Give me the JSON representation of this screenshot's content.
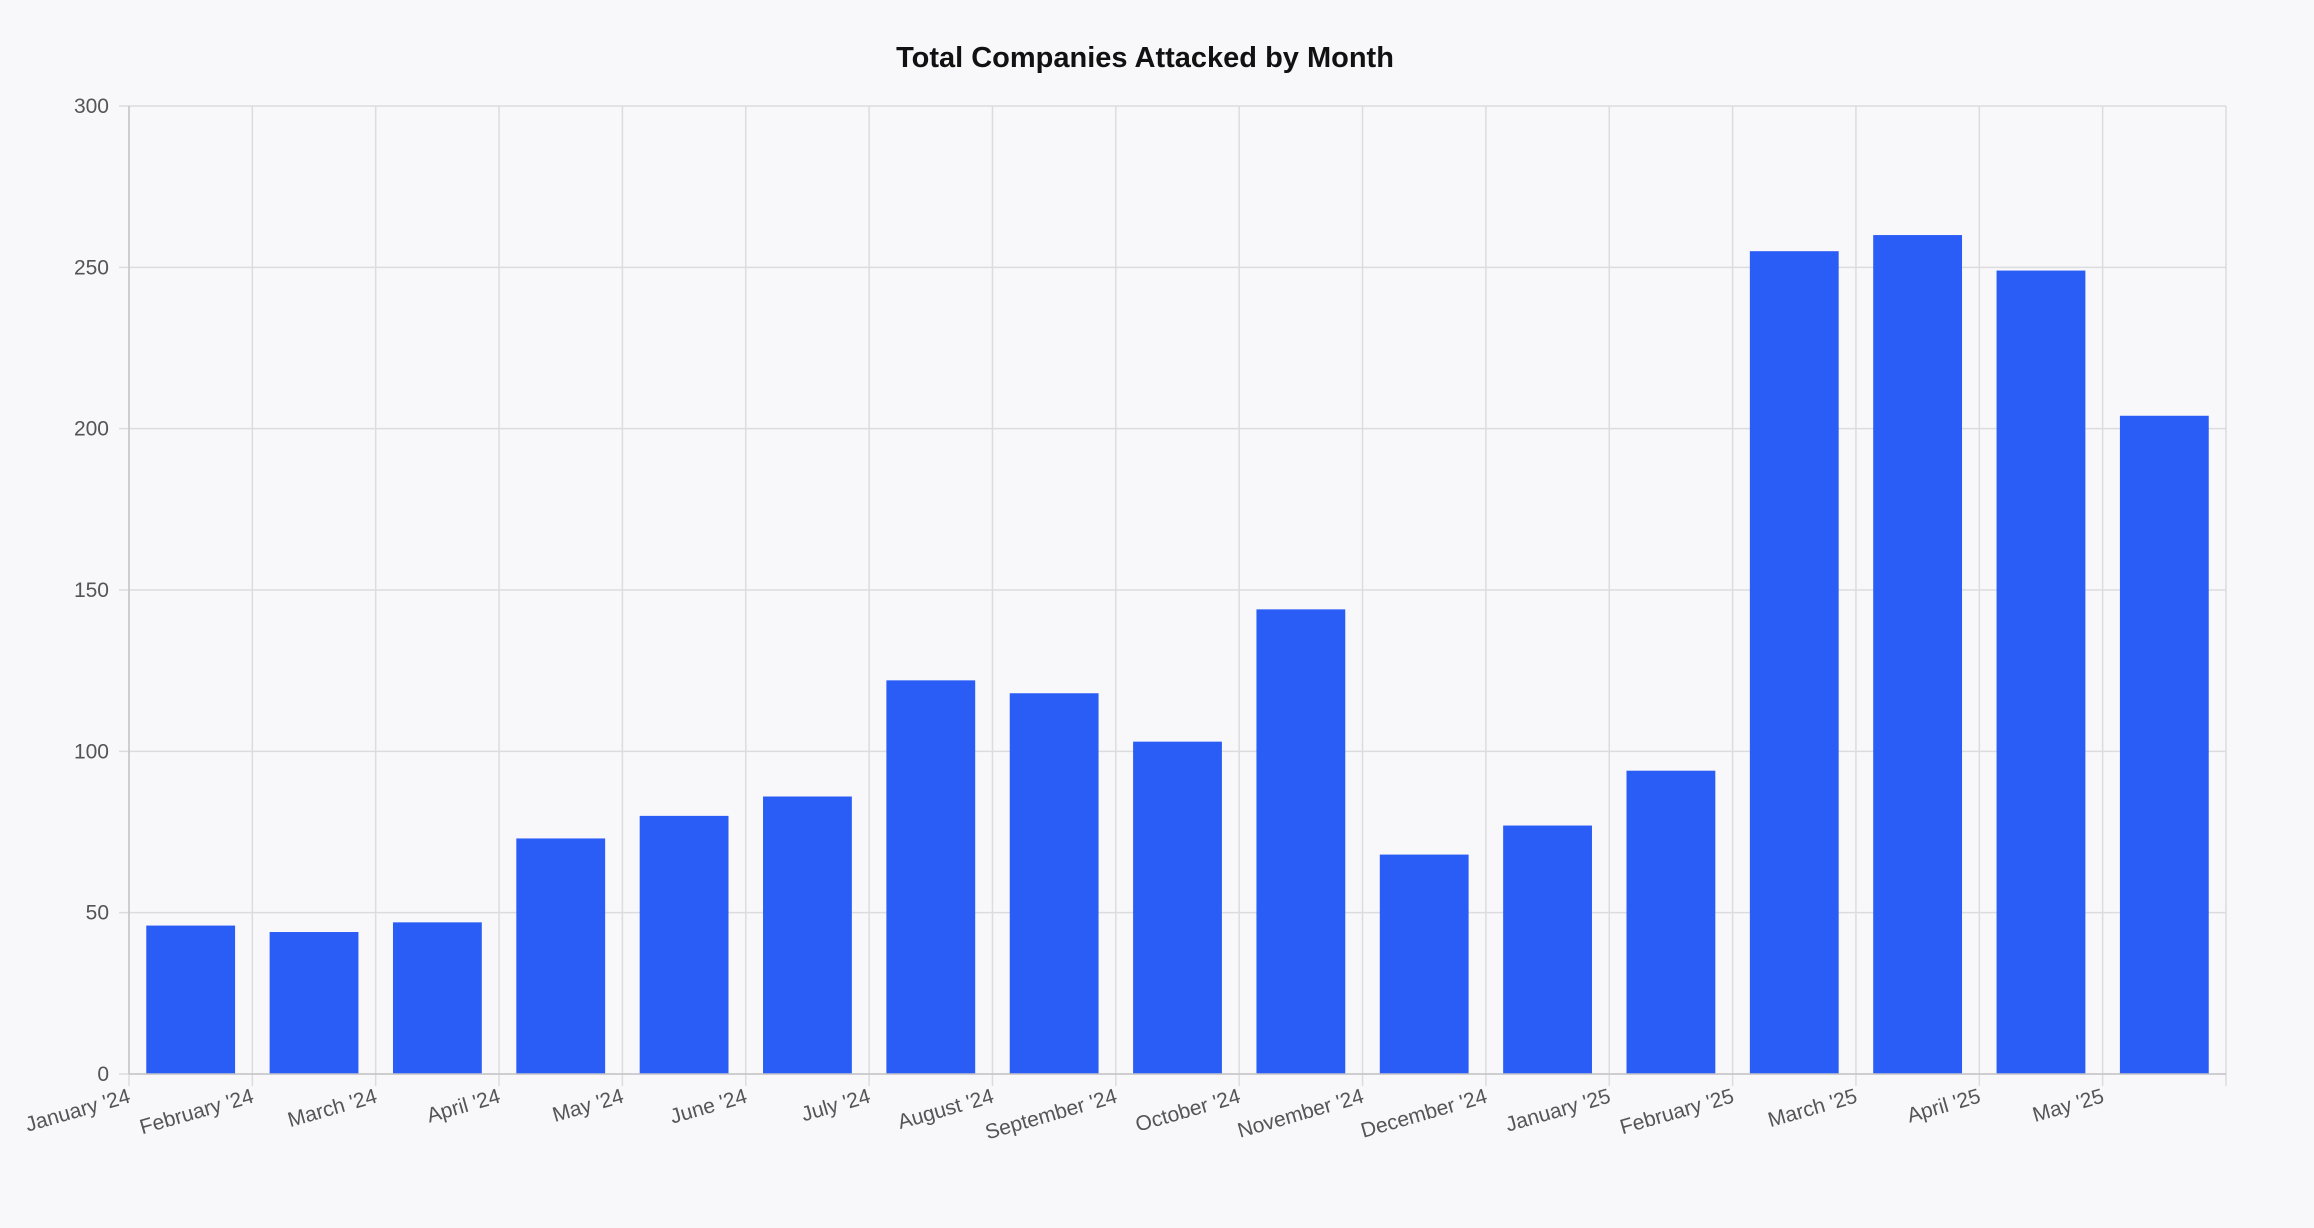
{
  "chart_data": {
    "type": "bar",
    "title": "Total Companies Attacked by Month",
    "xlabel": "",
    "ylabel": "",
    "categories": [
      "January '24",
      "February '24",
      "March '24",
      "April '24",
      "May '24",
      "June '24",
      "July '24",
      "August '24",
      "September '24",
      "October '24",
      "November '24",
      "December '24",
      "January '25",
      "February '25",
      "March '25",
      "April '25",
      "May '25"
    ],
    "values": [
      46,
      44,
      47,
      73,
      80,
      86,
      122,
      118,
      103,
      144,
      68,
      77,
      94,
      255,
      260,
      249,
      204
    ],
    "ylim": [
      0,
      300
    ],
    "yticks": [
      0,
      50,
      100,
      150,
      200,
      250,
      300
    ],
    "grid": true,
    "legend": "none",
    "bar_color": "#2a5cf6"
  }
}
